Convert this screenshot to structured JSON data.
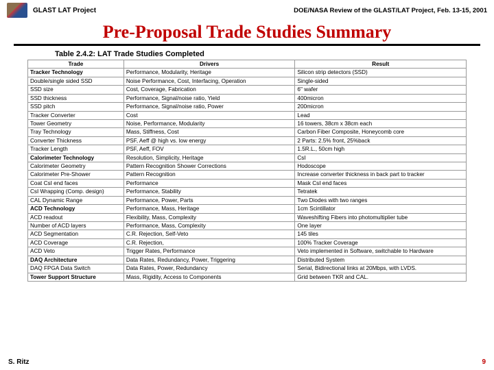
{
  "header": {
    "project": "GLAST LAT Project",
    "review": "DOE/NASA Review of the GLAST/LAT Project, Feb. 13-15, 2001"
  },
  "title": "Pre-Proposal Trade Studies Summary",
  "table": {
    "caption": "Table 2.4.2: LAT Trade Studies Completed",
    "columns": [
      "Trade",
      "Drivers",
      "Result"
    ],
    "rows": [
      {
        "section": true,
        "cells": [
          "Tracker Technology",
          "Performance, Modularity, Heritage",
          "Silicon strip detectors (SSD)"
        ]
      },
      {
        "cells": [
          "Double/single sided SSD",
          "Noise Performance, Cost, Interfacing, Operation",
          "Single-sided"
        ]
      },
      {
        "cells": [
          "SSD size",
          "Cost, Coverage, Fabrication",
          "6\" wafer"
        ]
      },
      {
        "cells": [
          "SSD thickness",
          "Performance, Signal/noise ratio, Yield",
          "400micron"
        ]
      },
      {
        "cells": [
          "SSD pitch",
          "Performance, Signal/noise ratio, Power",
          "200micron"
        ]
      },
      {
        "cells": [
          "Tracker Converter",
          "Cost",
          "Lead"
        ]
      },
      {
        "cells": [
          "Tower Geometry",
          "Noise, Performance, Modularity",
          "16 towers, 38cm x 38cm each"
        ]
      },
      {
        "cells": [
          "Tray Technology",
          "Mass, Stiffness, Cost",
          "Carbon Fiber Composite, Honeycomb core"
        ]
      },
      {
        "cells": [
          "Converter Thickness",
          "PSF, Aeff @ high vs. low energy",
          "2 Parts: 2.5% front, 25%back"
        ]
      },
      {
        "cells": [
          "Tracker Length",
          "PSF, Aeff, FOV",
          "1.5R.L., 50cm high"
        ]
      },
      {
        "section": true,
        "cells": [
          "Calorimeter Technology",
          "Resolution, Simplicity, Heritage",
          "CsI"
        ]
      },
      {
        "cells": [
          "Calorimeter Geometry",
          "Pattern Recognition\nShower Corrections",
          "Hodoscope"
        ]
      },
      {
        "cells": [
          "Calorimeter Pre-Shower",
          "Pattern Recognition",
          "Increase converter thickness in back part to tracker"
        ]
      },
      {
        "cells": [
          "Coat CsI end faces",
          "Performance",
          "Mask CsI end faces"
        ]
      },
      {
        "cells": [
          "CsI Wrapping (Comp. design)",
          "Performance, Stability",
          "Tetratek"
        ]
      },
      {
        "cells": [
          "CAL Dynamic Range",
          "Performance, Power, Parts",
          "Two Diodes with two ranges"
        ]
      },
      {
        "section": true,
        "cells": [
          "ACD Technology",
          "Performance, Mass, Heritage",
          "1cm Scintillator"
        ]
      },
      {
        "cells": [
          "ACD readout",
          "Flexibility, Mass, Complexity",
          "Waveshifting Fibers into photomultiplier tube"
        ]
      },
      {
        "cells": [
          "Number of ACD layers",
          "Performance, Mass, Complexity",
          "One layer"
        ]
      },
      {
        "cells": [
          "ACD Segmentation",
          "C.R. Rejection, Self-Veto",
          "145 tiles"
        ]
      },
      {
        "cells": [
          "ACD Coverage",
          "C.R. Rejection,",
          "100% Tracker Coverage"
        ]
      },
      {
        "cells": [
          "ACD Veto",
          "Trigger Rates, Performance",
          "Veto implemented in Software, switchable to Hardware"
        ]
      },
      {
        "section": true,
        "cells": [
          "DAQ Architecture",
          "Data Rates, Redundancy, Power, Triggering",
          "Distributed System"
        ]
      },
      {
        "cells": [
          "DAQ FPGA Data Switch",
          "Data Rates, Power, Redundancy",
          "Serial, Bidirectional links at 20Mbps, with LVDS."
        ]
      },
      {
        "section": true,
        "cells": [
          "Tower Support Structure",
          "Mass, Rigidity, Access to Components",
          "Grid between TKR and CAL."
        ]
      }
    ]
  },
  "footer": {
    "author": "S. Ritz",
    "page": "9"
  }
}
